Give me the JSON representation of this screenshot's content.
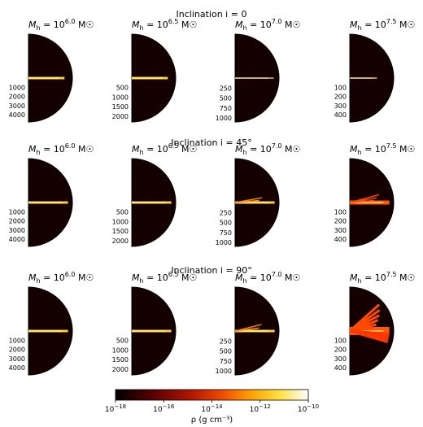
{
  "chart_data": {
    "type": "heatmap",
    "rows": [
      {
        "title": "Inclination $i = 0$",
        "title_text": "Inclination i = 0",
        "inclination_deg": 0
      },
      {
        "title": "Inclination $i = 45°$",
        "title_text": "Inclination i = 45°",
        "inclination_deg": 45
      },
      {
        "title": "Inclination $i = 90°$",
        "title_text": "Inclination i = 90°",
        "inclination_deg": 90
      }
    ],
    "columns": [
      {
        "label_prefix": "M",
        "label_sub": "h",
        "label_eq": " = 10",
        "label_exp": "6.0",
        "label_unit": " M☉",
        "log_mass": 6.0,
        "ticks": [
          "1000",
          "2000",
          "3000",
          "4000"
        ],
        "tick_values": [
          1000,
          2000,
          3000,
          4000
        ],
        "r_max": 4800
      },
      {
        "label_prefix": "M",
        "label_sub": "h",
        "label_eq": " = 10",
        "label_exp": "6.5",
        "label_unit": " M☉",
        "log_mass": 6.5,
        "ticks": [
          "500",
          "1000",
          "1500",
          "2000"
        ],
        "tick_values": [
          500,
          1000,
          1500,
          2000
        ],
        "r_max": 2300
      },
      {
        "label_prefix": "M",
        "label_sub": "h",
        "label_eq": " = 10",
        "label_exp": "7.0",
        "label_unit": " M☉",
        "log_mass": 7.0,
        "ticks": [
          "250",
          "500",
          "750",
          "1000"
        ],
        "tick_values": [
          250,
          500,
          750,
          1000
        ],
        "r_max": 1100
      },
      {
        "label_prefix": "M",
        "label_sub": "h",
        "label_eq": " = 10",
        "label_exp": "7.5",
        "label_unit": " M☉",
        "log_mass": 7.5,
        "ticks": [
          "100",
          "200",
          "300",
          "400"
        ],
        "tick_values": [
          100,
          200,
          300,
          400
        ],
        "r_max": 480
      }
    ],
    "colorbar": {
      "scale": "log",
      "range": [
        1e-18,
        1e-10
      ],
      "tick_base": "10",
      "tick_exponents": [
        "−18",
        "−16",
        "−14",
        "−12",
        "−10"
      ],
      "label": "ρ (g cm⁻³)",
      "colormap": "afmhot",
      "background_color": "#150000"
    }
  }
}
